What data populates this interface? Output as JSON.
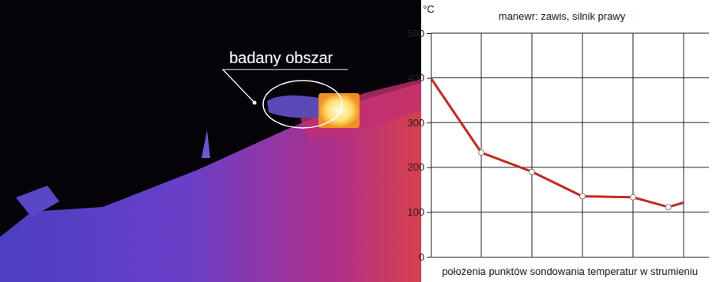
{
  "photo": {
    "annotation": "badany obszar"
  },
  "chart_data": {
    "type": "line",
    "title": "manewr: zawis, silnik prawy",
    "y_label": "°C",
    "x_label": "położenia punktów sondowania temperatur w strumieniu",
    "x": [
      0,
      1,
      2,
      3,
      4,
      4.7,
      5.0
    ],
    "series": [
      {
        "color": "#c42a1f",
        "marker": "circle",
        "values": [
          400,
          233,
          190,
          135,
          133,
          111,
          121
        ]
      }
    ],
    "xlim": [
      0,
      5.5
    ],
    "xticks": [
      1,
      2,
      3,
      4,
      5
    ],
    "ylim": [
      0,
      500
    ],
    "yticks": [
      0,
      100,
      200,
      300,
      400,
      500
    ],
    "grid": true,
    "tick_labels": "y"
  }
}
